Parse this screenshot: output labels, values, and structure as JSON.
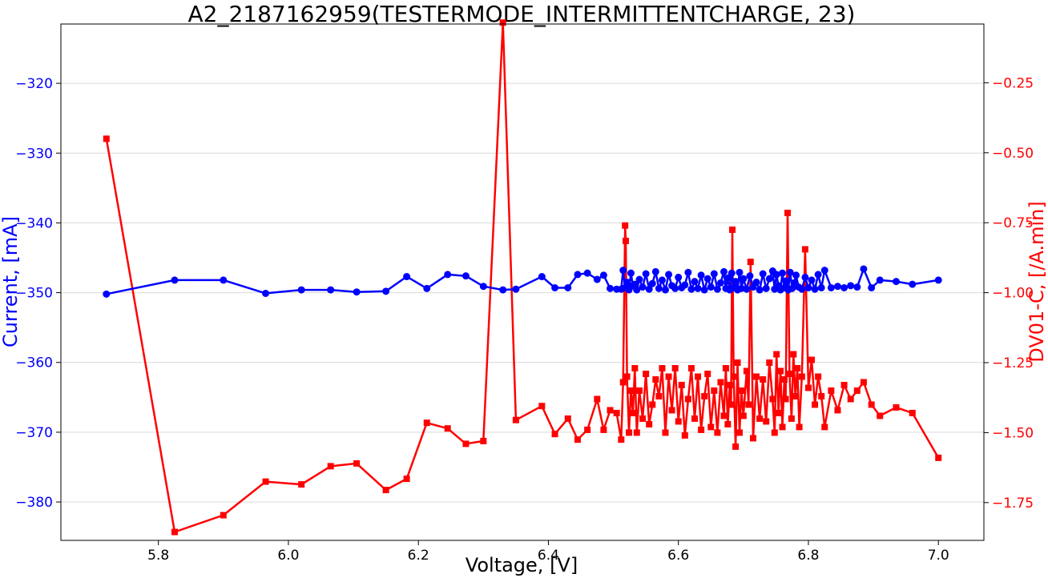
{
  "chart_data": {
    "type": "line",
    "title": "A2_2187162959(TESTERMODE_INTERMITTENTCHARGE, 23)",
    "xlabel": "Voltage, [V]",
    "ylabel": "Current, [mA]",
    "y2label": "DV01-C, [/A.min]",
    "xlim": [
      5.65,
      7.07
    ],
    "ylim": [
      -385.5,
      -311.5
    ],
    "y2lim": [
      -1.885,
      -0.04
    ],
    "xticks": [
      5.8,
      6.0,
      6.2,
      6.4,
      6.6,
      6.8,
      7.0
    ],
    "yticks": [
      -380,
      -370,
      -360,
      -350,
      -340,
      -330,
      -320
    ],
    "y2ticks": [
      -1.75,
      -1.5,
      -1.25,
      -1.0,
      -0.75,
      -0.5,
      -0.25
    ],
    "grid": "horizontal",
    "colors": {
      "current": "#0000ff",
      "dv": "#ff0000"
    },
    "series": [
      {
        "axis": "left",
        "marker": "circle",
        "x": [
          5.72,
          5.825,
          5.9,
          5.965,
          6.02,
          6.065,
          6.105,
          6.15,
          6.182,
          6.213,
          6.245,
          6.273,
          6.3,
          6.33,
          6.35,
          6.39,
          6.41,
          6.43,
          6.445,
          6.46,
          6.475,
          6.485,
          6.495,
          6.505,
          6.512,
          6.515,
          6.518,
          6.521,
          6.524,
          6.527,
          6.53,
          6.533,
          6.536,
          6.54,
          6.545,
          6.55,
          6.555,
          6.56,
          6.565,
          6.57,
          6.575,
          6.58,
          6.585,
          6.59,
          6.595,
          6.6,
          6.605,
          6.61,
          6.615,
          6.62,
          6.625,
          6.63,
          6.635,
          6.64,
          6.645,
          6.65,
          6.655,
          6.66,
          6.665,
          6.67,
          6.673,
          6.676,
          6.679,
          6.682,
          6.685,
          6.688,
          6.691,
          6.694,
          6.697,
          6.7,
          6.705,
          6.71,
          6.715,
          6.72,
          6.725,
          6.73,
          6.735,
          6.74,
          6.745,
          6.748,
          6.751,
          6.754,
          6.757,
          6.76,
          6.763,
          6.766,
          6.769,
          6.772,
          6.775,
          6.778,
          6.781,
          6.785,
          6.79,
          6.795,
          6.8,
          6.805,
          6.81,
          6.815,
          6.82,
          6.825,
          6.835,
          6.845,
          6.855,
          6.865,
          6.875,
          6.885,
          6.897,
          6.91,
          6.935,
          6.96,
          7.0
        ],
        "values": [
          -350.2,
          -348.2,
          -348.2,
          -350.1,
          -349.6,
          -349.6,
          -349.9,
          -349.8,
          -347.7,
          -349.4,
          -347.4,
          -347.6,
          -349.1,
          -349.6,
          -349.5,
          -347.7,
          -349.3,
          -349.3,
          -347.4,
          -347.2,
          -348.1,
          -347.5,
          -349.4,
          -349.5,
          -349.5,
          -346.8,
          -349.3,
          -348.5,
          -349.6,
          -347.2,
          -349.0,
          -348.8,
          -349.6,
          -348.1,
          -349.2,
          -347.3,
          -349.5,
          -348.7,
          -347.0,
          -349.4,
          -348.2,
          -349.6,
          -347.4,
          -349.0,
          -349.4,
          -347.8,
          -349.3,
          -348.9,
          -347.1,
          -349.5,
          -348.4,
          -349.4,
          -347.5,
          -349.6,
          -348.0,
          -349.2,
          -347.3,
          -349.5,
          -348.6,
          -347.0,
          -349.4,
          -347.9,
          -349.6,
          -347.2,
          -349.3,
          -348.4,
          -349.6,
          -347.1,
          -349.4,
          -348.0,
          -349.5,
          -347.6,
          -349.2,
          -348.5,
          -349.6,
          -347.3,
          -349.4,
          -348.0,
          -346.9,
          -349.5,
          -347.4,
          -349.0,
          -349.6,
          -347.2,
          -349.3,
          -348.3,
          -349.6,
          -347.1,
          -349.4,
          -348.6,
          -347.5,
          -349.2,
          -349.5,
          -347.8,
          -349.3,
          -348.2,
          -349.5,
          -347.4,
          -349.3,
          -346.8,
          -349.3,
          -349.1,
          -349.3,
          -349.0,
          -349.2,
          -346.6,
          -349.3,
          -348.2,
          -348.4,
          -348.8,
          -348.2
        ]
      },
      {
        "axis": "right",
        "marker": "square",
        "x": [
          5.72,
          5.825,
          5.9,
          5.965,
          6.02,
          6.065,
          6.105,
          6.15,
          6.182,
          6.213,
          6.245,
          6.273,
          6.3,
          6.33,
          6.35,
          6.39,
          6.41,
          6.43,
          6.445,
          6.46,
          6.475,
          6.485,
          6.495,
          6.505,
          6.512,
          6.515,
          6.518,
          6.519,
          6.521,
          6.524,
          6.527,
          6.53,
          6.533,
          6.536,
          6.54,
          6.545,
          6.55,
          6.555,
          6.56,
          6.565,
          6.57,
          6.575,
          6.58,
          6.585,
          6.59,
          6.595,
          6.6,
          6.605,
          6.61,
          6.615,
          6.62,
          6.625,
          6.63,
          6.635,
          6.64,
          6.645,
          6.65,
          6.655,
          6.66,
          6.665,
          6.67,
          6.673,
          6.676,
          6.679,
          6.681,
          6.683,
          6.685,
          6.688,
          6.691,
          6.694,
          6.697,
          6.7,
          6.705,
          6.708,
          6.711,
          6.715,
          6.72,
          6.725,
          6.73,
          6.735,
          6.74,
          6.745,
          6.748,
          6.751,
          6.754,
          6.757,
          6.76,
          6.763,
          6.765,
          6.768,
          6.771,
          6.774,
          6.777,
          6.78,
          6.783,
          6.786,
          6.79,
          6.795,
          6.8,
          6.805,
          6.81,
          6.815,
          6.82,
          6.825,
          6.835,
          6.845,
          6.855,
          6.865,
          6.875,
          6.885,
          6.897,
          6.91,
          6.935,
          6.96,
          7.0
        ],
        "values": [
          -0.45,
          -1.855,
          -1.795,
          -1.675,
          -1.685,
          -1.62,
          -1.61,
          -1.705,
          -1.665,
          -1.465,
          -1.485,
          -1.54,
          -1.53,
          -0.035,
          -1.455,
          -1.405,
          -1.505,
          -1.45,
          -1.525,
          -1.49,
          -1.38,
          -1.49,
          -1.42,
          -1.43,
          -1.525,
          -1.32,
          -0.76,
          -0.815,
          -1.3,
          -1.5,
          -1.35,
          -1.43,
          -1.27,
          -1.5,
          -1.35,
          -1.45,
          -1.29,
          -1.47,
          -1.4,
          -1.31,
          -1.37,
          -1.27,
          -1.5,
          -1.3,
          -1.42,
          -1.27,
          -1.46,
          -1.33,
          -1.51,
          -1.38,
          -1.27,
          -1.45,
          -1.3,
          -1.49,
          -1.37,
          -1.29,
          -1.48,
          -1.35,
          -1.5,
          -1.32,
          -1.44,
          -1.27,
          -1.47,
          -1.33,
          -1.4,
          -0.775,
          -1.3,
          -1.55,
          -1.25,
          -1.5,
          -1.35,
          -1.44,
          -1.28,
          -1.4,
          -0.89,
          -1.52,
          -1.3,
          -1.45,
          -1.31,
          -1.46,
          -1.25,
          -1.38,
          -1.5,
          -1.22,
          -1.43,
          -1.28,
          -1.48,
          -1.31,
          -1.38,
          -0.715,
          -1.29,
          -1.45,
          -1.22,
          -1.37,
          -1.27,
          -1.48,
          -1.3,
          -0.845,
          -1.34,
          -1.24,
          -1.4,
          -1.3,
          -1.37,
          -1.48,
          -1.35,
          -1.42,
          -1.33,
          -1.38,
          -1.35,
          -1.32,
          -1.4,
          -1.44,
          -1.41,
          -1.43,
          -1.59
        ]
      }
    ]
  }
}
